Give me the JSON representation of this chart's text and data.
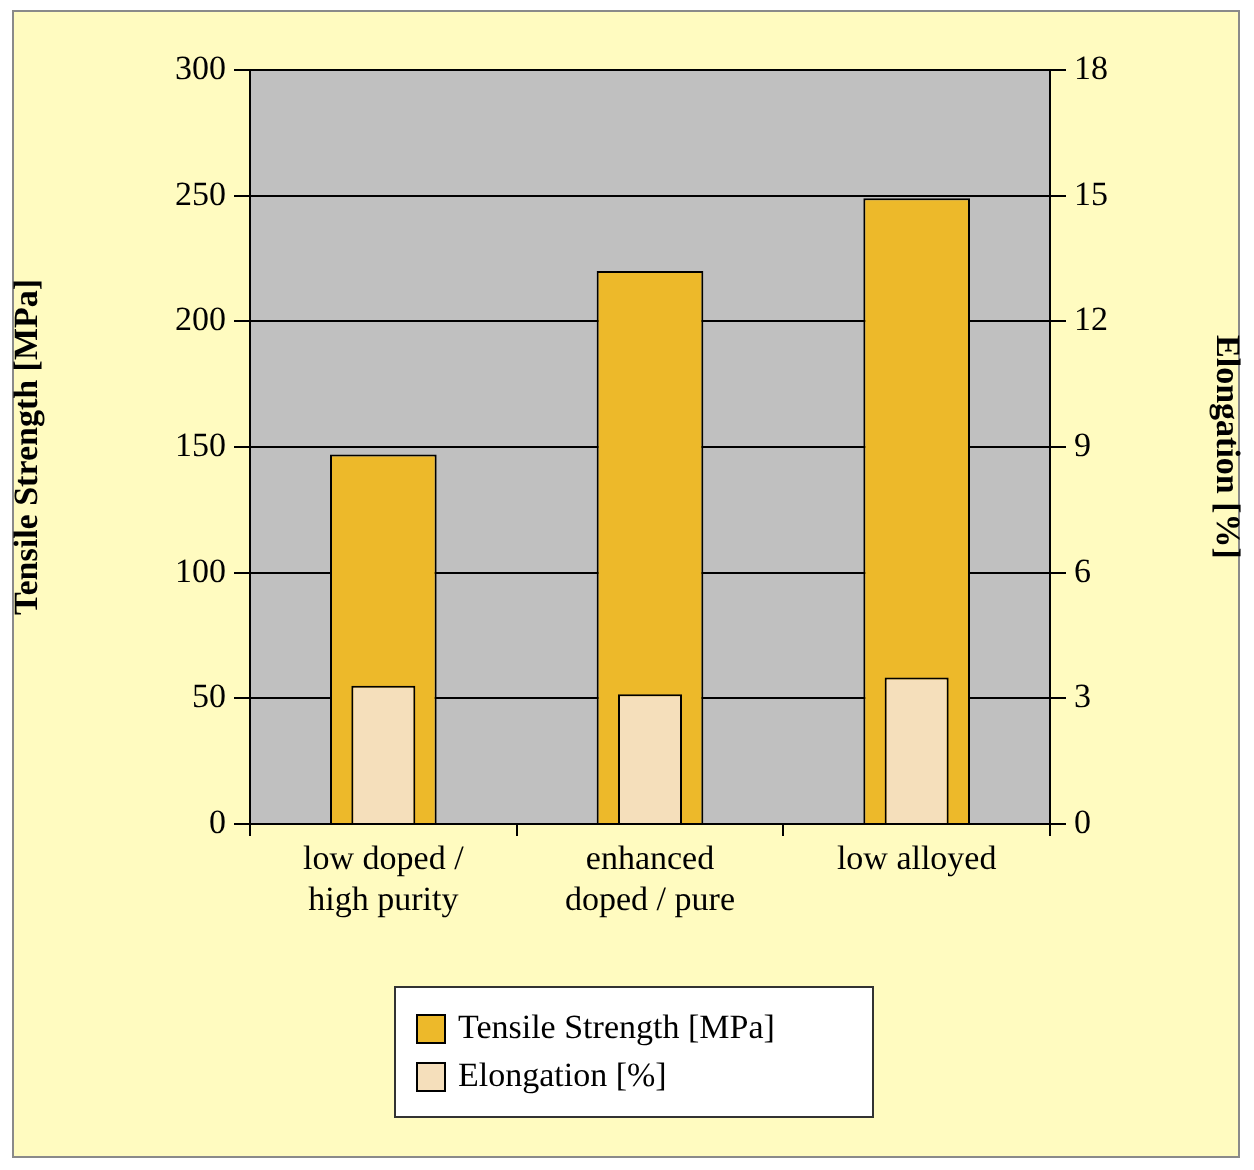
{
  "chart_data": {
    "type": "bar",
    "categories": [
      "low doped / high purity",
      "enhanced doped / pure",
      "low alloyed"
    ],
    "series": [
      {
        "name": "Tensile Strength [MPa]",
        "color": "#edb92a",
        "values": [
          147,
          220,
          249
        ]
      },
      {
        "name": "Elongation [%]",
        "color": "#f5dfbb",
        "values": [
          3.3,
          3.1,
          3.5
        ],
        "axis": "y2"
      }
    ],
    "ylabel": "Tensile Strength [MPa]",
    "y2label": "Elongation [%]",
    "ylim": [
      0,
      300
    ],
    "yticks": [
      0,
      50,
      100,
      150,
      200,
      250,
      300
    ],
    "y2lim": [
      0,
      18
    ],
    "y2ticks": [
      0,
      3,
      6,
      9,
      12,
      15,
      18
    ],
    "grid": "y",
    "legend": "bottom"
  }
}
